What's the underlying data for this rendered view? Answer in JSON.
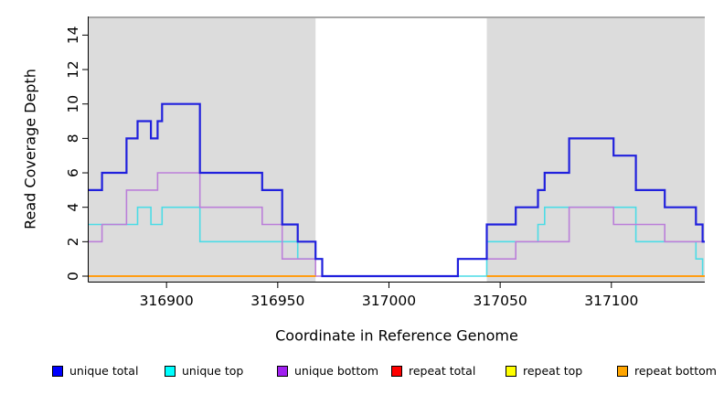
{
  "figure": {
    "background": "#ffffff",
    "shade_color": "#dcdcdc",
    "plot_top_border_color": "#a6a6a6",
    "axis_color": "#000000",
    "text_color": "#000000"
  },
  "chart_data": {
    "type": "line",
    "subtype": "step-coverage",
    "title": "",
    "xlabel": "Coordinate in Reference Genome",
    "ylabel": "Read Coverage Depth",
    "xlim": [
      316865,
      317142
    ],
    "ylim": [
      0,
      15
    ],
    "x_ticks": [
      316900,
      316950,
      317000,
      317050,
      317100
    ],
    "y_ticks": [
      0,
      2,
      4,
      6,
      8,
      10,
      12,
      14
    ],
    "grid": false,
    "legend_position": "bottom",
    "shaded_regions": [
      [
        316865,
        316967
      ],
      [
        317044,
        317142
      ]
    ],
    "series": [
      {
        "name": "unique top",
        "color": "#4cdce6",
        "width": 1.6,
        "segments": [
          {
            "steps": [
              [
                316865,
                3
              ],
              [
                316887,
                4
              ],
              [
                316893,
                3
              ],
              [
                316898,
                4
              ],
              [
                316915,
                2
              ],
              [
                316959,
                1
              ],
              [
                316970,
                0
              ],
              [
                317044,
                2
              ],
              [
                317067,
                3
              ],
              [
                317070,
                4
              ],
              [
                317111,
                2
              ],
              [
                317138,
                1
              ],
              [
                317141,
                0
              ]
            ],
            "end": 317142
          }
        ]
      },
      {
        "name": "unique bottom",
        "color": "#bb7fd9",
        "width": 1.6,
        "segments": [
          {
            "steps": [
              [
                316865,
                2
              ],
              [
                316871,
                3
              ],
              [
                316882,
                5
              ],
              [
                316896,
                6
              ],
              [
                316915,
                4
              ],
              [
                316943,
                3
              ],
              [
                316952,
                1
              ],
              [
                316967,
                0
              ],
              [
                317031,
                1
              ],
              [
                317057,
                2
              ],
              [
                317081,
                4
              ],
              [
                317101,
                3
              ],
              [
                317124,
                2
              ]
            ],
            "end": 317142
          }
        ]
      },
      {
        "name": "unique total",
        "color": "#2020dd",
        "width": 2.2,
        "segments": [
          {
            "steps": [
              [
                316865,
                5
              ],
              [
                316871,
                6
              ],
              [
                316882,
                8
              ],
              [
                316887,
                9
              ],
              [
                316893,
                8
              ],
              [
                316896,
                9
              ],
              [
                316898,
                10
              ],
              [
                316915,
                6
              ],
              [
                316943,
                5
              ],
              [
                316952,
                3
              ],
              [
                316959,
                2
              ],
              [
                316967,
                1
              ],
              [
                316970,
                0
              ],
              [
                317031,
                1
              ],
              [
                317044,
                3
              ],
              [
                317057,
                4
              ],
              [
                317067,
                5
              ],
              [
                317070,
                6
              ],
              [
                317081,
                8
              ],
              [
                317101,
                7
              ],
              [
                317111,
                5
              ],
              [
                317124,
                4
              ],
              [
                317138,
                3
              ],
              [
                317141,
                2
              ]
            ],
            "end": 317142
          }
        ]
      },
      {
        "name": "repeat total",
        "color": "#e00000",
        "width": 1.6,
        "segments": [
          {
            "steps": [
              [
                316865,
                0
              ]
            ],
            "end": 316967
          },
          {
            "steps": [
              [
                317044,
                0
              ]
            ],
            "end": 317142
          }
        ]
      },
      {
        "name": "repeat top",
        "color": "#ffe900",
        "width": 1.6,
        "segments": [
          {
            "steps": [
              [
                316865,
                0
              ]
            ],
            "end": 316967
          },
          {
            "steps": [
              [
                317044,
                0
              ]
            ],
            "end": 317142
          }
        ]
      },
      {
        "name": "repeat bottom",
        "color": "#ff9d14",
        "width": 2,
        "segments": [
          {
            "steps": [
              [
                316865,
                0
              ]
            ],
            "end": 316967
          },
          {
            "steps": [
              [
                317044,
                0
              ]
            ],
            "end": 317142
          }
        ]
      }
    ],
    "legend": [
      {
        "label": "unique total",
        "color": "#0000ff"
      },
      {
        "label": "unique top",
        "color": "#00ffff"
      },
      {
        "label": "unique bottom",
        "color": "#a020f0"
      },
      {
        "label": "repeat total",
        "color": "#ff0000"
      },
      {
        "label": "repeat top",
        "color": "#ffff00"
      },
      {
        "label": "repeat bottom",
        "color": "#ffa500"
      }
    ]
  }
}
